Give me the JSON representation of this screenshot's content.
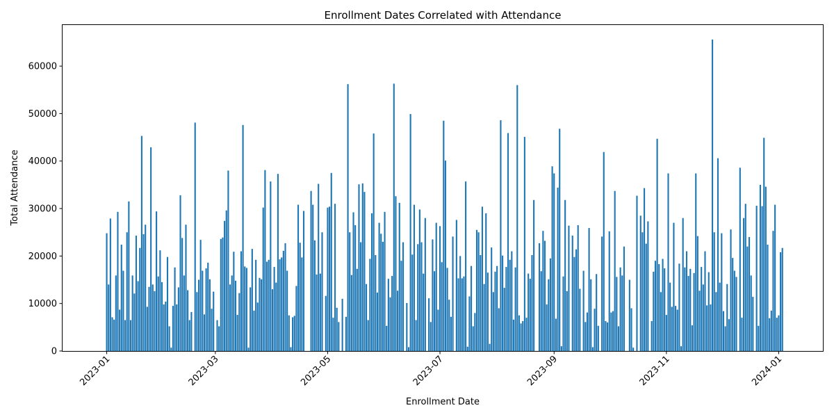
{
  "chart_data": {
    "type": "bar",
    "title": "Enrollment Dates Correlated with Attendance",
    "xlabel": "Enrollment Date",
    "ylabel": "Total Attendance",
    "x_start": "2023-01-01",
    "x_end": "2024-01-01",
    "xlim": [
      "2022-12-08",
      "2024-01-25"
    ],
    "ylim": [
      0,
      68800
    ],
    "x_ticks": [
      {
        "date": "2023-01-01",
        "label": "2023-01"
      },
      {
        "date": "2023-03-01",
        "label": "2023-03"
      },
      {
        "date": "2023-05-01",
        "label": "2023-05"
      },
      {
        "date": "2023-07-01",
        "label": "2023-07"
      },
      {
        "date": "2023-09-01",
        "label": "2023-09"
      },
      {
        "date": "2023-11-01",
        "label": "2023-11"
      },
      {
        "date": "2024-01-01",
        "label": "2024-01"
      }
    ],
    "y_ticks": [
      0,
      10000,
      20000,
      30000,
      40000,
      50000,
      60000
    ],
    "y_tick_labels": [
      "0",
      "10000",
      "20000",
      "30000",
      "40000",
      "50000",
      "60000"
    ],
    "bar_color": "#1f77b4",
    "grid": false,
    "values": [
      24800,
      14000,
      27900,
      7100,
      6600,
      15900,
      29300,
      8700,
      22400,
      16900,
      6500,
      25000,
      31500,
      6500,
      15900,
      12100,
      24300,
      14700,
      21700,
      45300,
      24600,
      26600,
      9300,
      13500,
      42900,
      14000,
      12600,
      29400,
      15700,
      21200,
      14500,
      9800,
      10400,
      19800,
      5200,
      700,
      9500,
      17600,
      9800,
      13400,
      32800,
      23800,
      15900,
      26600,
      12800,
      6500,
      8200,
      0,
      48100,
      12400,
      15000,
      23400,
      16900,
      7700,
      17400,
      18600,
      15100,
      8900,
      12500,
      0,
      6500,
      5200,
      23600,
      23900,
      27400,
      29600,
      38000,
      14000,
      15900,
      20900,
      14800,
      7600,
      12200,
      21000,
      47600,
      17800,
      17500,
      700,
      13400,
      21500,
      8500,
      19200,
      10200,
      15400,
      15100,
      30200,
      38100,
      18800,
      19200,
      35700,
      13000,
      17700,
      14400,
      37300,
      19300,
      19700,
      21100,
      22700,
      16900,
      7500,
      800,
      7100,
      7400,
      13700,
      30800,
      22800,
      19700,
      29500,
      0,
      0,
      0,
      33700,
      30800,
      23300,
      16100,
      35200,
      16300,
      25000,
      0,
      11600,
      30200,
      30400,
      37500,
      7000,
      31000,
      9100,
      6100,
      0,
      11000,
      0,
      7200,
      56200,
      25000,
      16000,
      29200,
      26500,
      17300,
      35100,
      22900,
      35300,
      33500,
      14100,
      6500,
      19400,
      29000,
      45800,
      20200,
      12300,
      27000,
      24700,
      23000,
      29300,
      5300,
      15200,
      11300,
      15800,
      56300,
      32600,
      12700,
      31200,
      19000,
      22900,
      0,
      10100,
      800,
      49900,
      20300,
      30800,
      6500,
      22500,
      29800,
      22900,
      16300,
      28000,
      0,
      11100,
      6100,
      23500,
      16800,
      27000,
      8700,
      26300,
      18700,
      48500,
      40100,
      17500,
      10800,
      7200,
      24100,
      0,
      27600,
      15300,
      20000,
      15300,
      15700,
      35700,
      900,
      11500,
      17900,
      5200,
      8000,
      25500,
      25000,
      20200,
      30400,
      14100,
      29000,
      16500,
      1500,
      21800,
      12400,
      16700,
      17900,
      9000,
      48600,
      20100,
      13300,
      17700,
      45900,
      19200,
      21000,
      6600,
      17600,
      56000,
      7500,
      5800,
      6300,
      45100,
      7000,
      16300,
      15200,
      20200,
      31800,
      0,
      0,
      22700,
      16800,
      25300,
      23200,
      9800,
      15100,
      19500,
      38900,
      37400,
      6800,
      34400,
      46800,
      1000,
      15700,
      31800,
      12600,
      26400,
      0,
      24300,
      19800,
      21400,
      26500,
      13100,
      0,
      16900,
      6100,
      8100,
      25900,
      15100,
      800,
      8900,
      16200,
      5300,
      0,
      24100,
      41900,
      6300,
      6000,
      25200,
      8100,
      8400,
      33700,
      15600,
      5200,
      17600,
      15900,
      22000,
      0,
      0,
      15000,
      9000,
      700,
      0,
      32700,
      0,
      28500,
      25000,
      34300,
      22600,
      27300,
      0,
      6300,
      16700,
      19000,
      44700,
      18300,
      12400,
      19400,
      17400,
      7600,
      37400,
      14400,
      9300,
      27000,
      9500,
      8700,
      18400,
      1000,
      28000,
      17600,
      21000,
      15800,
      17300,
      5400,
      16400,
      37400,
      24200,
      12700,
      17700,
      14000,
      21000,
      9600,
      16600,
      9800,
      65600,
      25000,
      12400,
      40600,
      14400,
      24800,
      8400,
      5200,
      14100,
      6700,
      25600,
      19600,
      16900,
      15600,
      0,
      38600,
      7000,
      28000,
      31000,
      22000,
      24000,
      15900,
      11400,
      0,
      30600,
      5300,
      35000,
      30500,
      44900,
      34600,
      22400,
      6900,
      8500,
      25300,
      30800,
      7000,
      7500,
      20800,
      21700
    ]
  }
}
